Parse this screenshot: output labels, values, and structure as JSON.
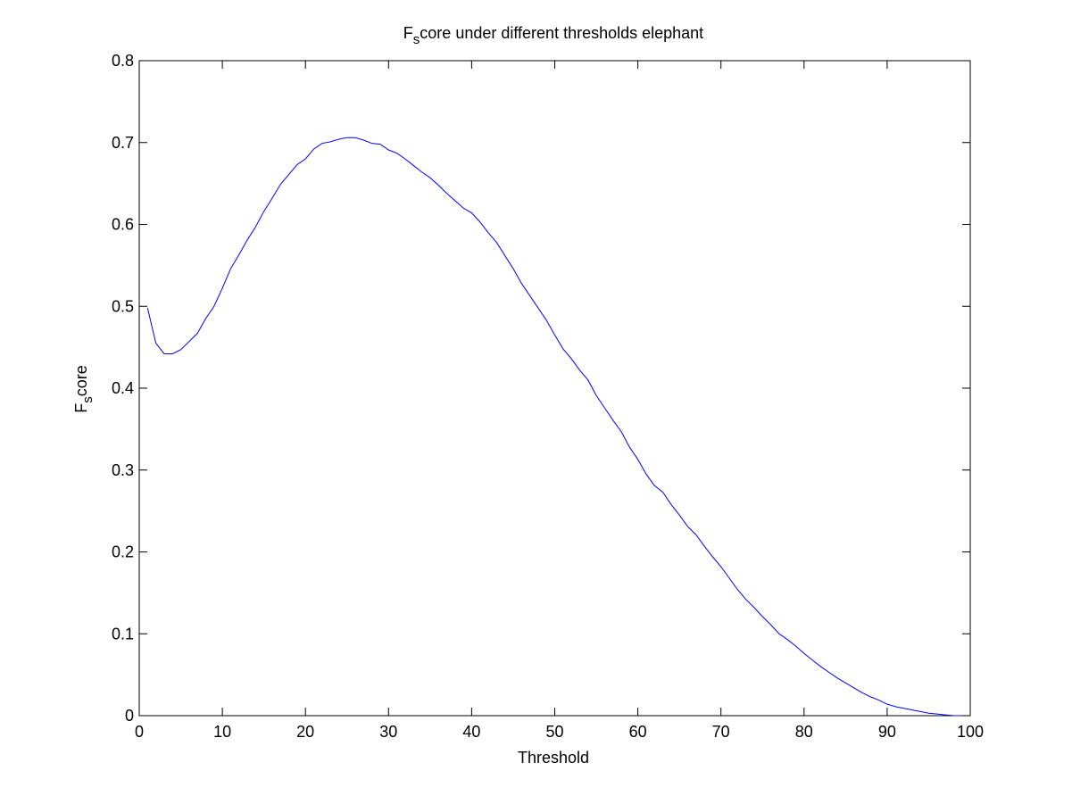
{
  "chart_data": {
    "type": "line",
    "title_main": "F",
    "title_sub": "s",
    "title_rest": "core under different thresholds elephant",
    "xlabel": "Threshold",
    "ylabel_main": "F",
    "ylabel_sub": "s",
    "ylabel_rest": "core",
    "xlim": [
      0,
      100
    ],
    "ylim": [
      0,
      0.8
    ],
    "xticks": [
      "0",
      "10",
      "20",
      "30",
      "40",
      "50",
      "60",
      "70",
      "80",
      "90",
      "100"
    ],
    "yticks": [
      "0",
      "0.1",
      "0.2",
      "0.3",
      "0.4",
      "0.5",
      "0.6",
      "0.7",
      "0.8"
    ],
    "grid": false,
    "line_color": "#0000ff",
    "series": [
      {
        "x": [
          1,
          2,
          3,
          4,
          5,
          6,
          7,
          8,
          9,
          10,
          11,
          12,
          13,
          14,
          15,
          16,
          17,
          18,
          19,
          20,
          21,
          22,
          23,
          24,
          25,
          26,
          27,
          28,
          29,
          30,
          31,
          32,
          33,
          34,
          35,
          36,
          37,
          38,
          39,
          40,
          41,
          42,
          43,
          44,
          45,
          46,
          47,
          48,
          49,
          50,
          51,
          52,
          53,
          54,
          55,
          56,
          57,
          58,
          59,
          60,
          61,
          62,
          63,
          64,
          65,
          66,
          67,
          68,
          69,
          70,
          71,
          72,
          73,
          74,
          75,
          76,
          77,
          78,
          79,
          80,
          81,
          82,
          83,
          84,
          85,
          86,
          87,
          88,
          89,
          90,
          91,
          92,
          93,
          94,
          95,
          96,
          97,
          98,
          99
        ],
        "y": [
          0.498,
          0.455,
          0.442,
          0.442,
          0.447,
          0.457,
          0.467,
          0.485,
          0.5,
          0.522,
          0.546,
          0.563,
          0.581,
          0.597,
          0.616,
          0.632,
          0.649,
          0.661,
          0.673,
          0.68,
          0.692,
          0.699,
          0.701,
          0.704,
          0.706,
          0.706,
          0.703,
          0.699,
          0.698,
          0.691,
          0.687,
          0.68,
          0.672,
          0.664,
          0.657,
          0.648,
          0.638,
          0.629,
          0.62,
          0.614,
          0.603,
          0.59,
          0.578,
          0.562,
          0.546,
          0.528,
          0.513,
          0.498,
          0.483,
          0.465,
          0.448,
          0.436,
          0.422,
          0.41,
          0.391,
          0.376,
          0.361,
          0.347,
          0.328,
          0.313,
          0.295,
          0.281,
          0.273,
          0.258,
          0.245,
          0.231,
          0.221,
          0.207,
          0.194,
          0.182,
          0.168,
          0.154,
          0.142,
          0.132,
          0.121,
          0.111,
          0.1,
          0.093,
          0.085,
          0.076,
          0.068,
          0.06,
          0.053,
          0.046,
          0.04,
          0.034,
          0.028,
          0.023,
          0.019,
          0.014,
          0.011,
          0.009,
          0.007,
          0.005,
          0.003,
          0.002,
          0.001,
          0.0,
          0.0
        ]
      }
    ]
  }
}
